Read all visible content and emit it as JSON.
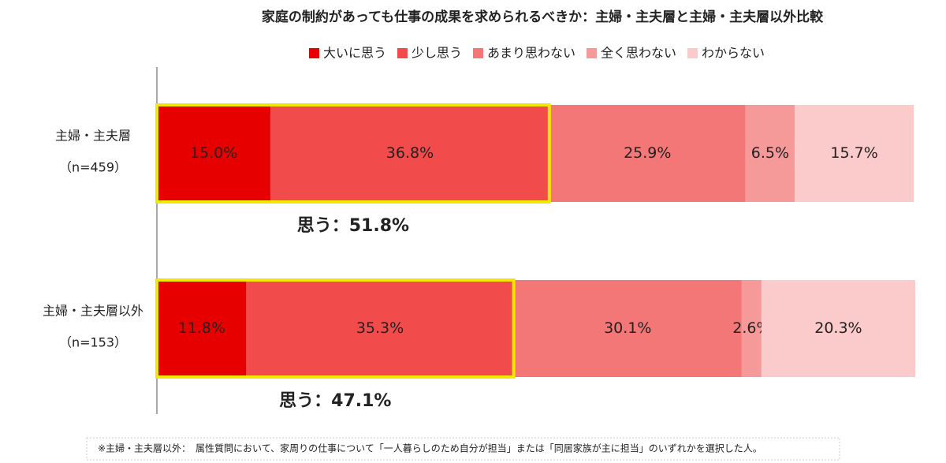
{
  "chart_data": {
    "type": "stacked_bar_horizontal",
    "title": "家庭の制約があっても仕事の成果を求められるべきか：主婦・主夫層と主婦・主夫層以外比較",
    "categories": [
      "主婦・主夫層",
      "主婦・主夫層以外"
    ],
    "category_notes": [
      "（n=459）",
      "（n=153）"
    ],
    "xlim": [
      0,
      100
    ],
    "series": [
      {
        "name": "大いに思う",
        "color": "#e60000",
        "values": [
          15.0,
          11.8
        ],
        "value_labels": [
          "15.0%",
          "11.8%"
        ]
      },
      {
        "name": "少し思う",
        "color": "#f24b4b",
        "values": [
          36.8,
          35.3
        ],
        "value_labels": [
          "36.8%",
          "35.3%"
        ]
      },
      {
        "name": "あまり思わない",
        "color": "#f47777",
        "values": [
          25.9,
          30.1
        ],
        "value_labels": [
          "25.9%",
          "30.1%"
        ]
      },
      {
        "name": "全く思わない",
        "color": "#f69999",
        "values": [
          6.5,
          2.6
        ],
        "value_labels": [
          "6.5%",
          "2.6%"
        ]
      },
      {
        "name": "わからない",
        "color": "#fbcaca",
        "values": [
          15.7,
          20.3
        ],
        "value_labels": [
          "15.7%",
          "20.3%"
        ]
      }
    ],
    "highlight_series": [
      0,
      1
    ],
    "highlight_color": "#f5e600",
    "annotations": [
      "思う：51.8%",
      "思う：47.1%"
    ],
    "footnote": "※主婦・主夫層以外：　属性質問において、家周りの仕事について「一人暮らしのため自分が担当」または「同居家族が主に担当」のいずれかを選択した人。"
  }
}
